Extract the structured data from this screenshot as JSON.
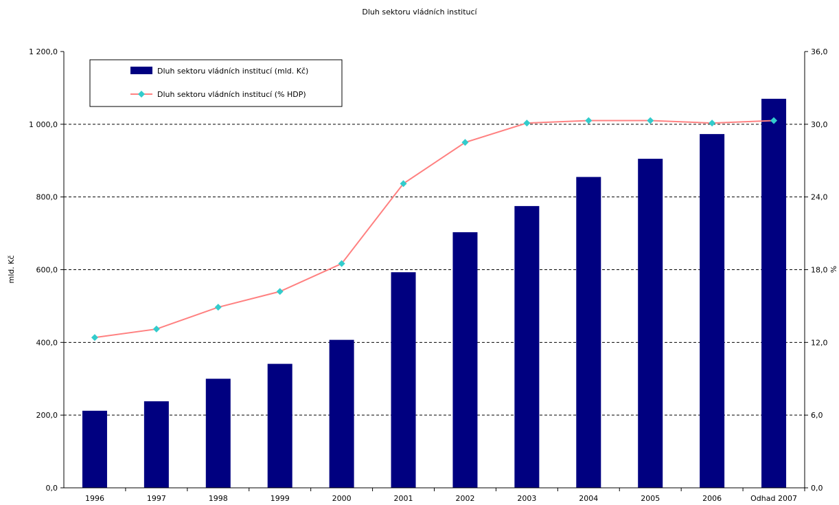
{
  "chart_data": {
    "type": "bar",
    "title": "Dluh sektoru vládních institucí",
    "categories": [
      "1996",
      "1997",
      "1998",
      "1999",
      "2000",
      "2001",
      "2002",
      "2003",
      "2004",
      "2005",
      "2006",
      "Odhad 2007"
    ],
    "series": [
      {
        "name": "Dluh sektoru vládních institucí (mld. Kč)",
        "type": "bar",
        "axis": "left",
        "color": "#000080",
        "values": [
          212,
          238,
          300,
          341,
          407,
          593,
          703,
          775,
          855,
          905,
          973,
          1070
        ]
      },
      {
        "name": "Dluh sektoru vládních institucí (% HDP)",
        "type": "line",
        "axis": "right",
        "color": "#FF8080",
        "marker_color": "#33CCCC",
        "values": [
          12.4,
          13.1,
          14.9,
          16.2,
          18.5,
          25.1,
          28.5,
          30.1,
          30.3,
          30.3,
          30.1,
          30.3
        ]
      }
    ],
    "ylabel": "mld. Kč",
    "y2label": "%",
    "ylim": [
      0,
      1200
    ],
    "y2lim": [
      0,
      36
    ],
    "yticks": [
      "0,0",
      "200,0",
      "400,0",
      "600,0",
      "800,0",
      "1 000,0",
      "1 200,0"
    ],
    "y2ticks": [
      "0,0",
      "6,0",
      "12,0",
      "18,0",
      "24,0",
      "30,0",
      "36,0"
    ],
    "grid": true,
    "legend": "top-left"
  }
}
